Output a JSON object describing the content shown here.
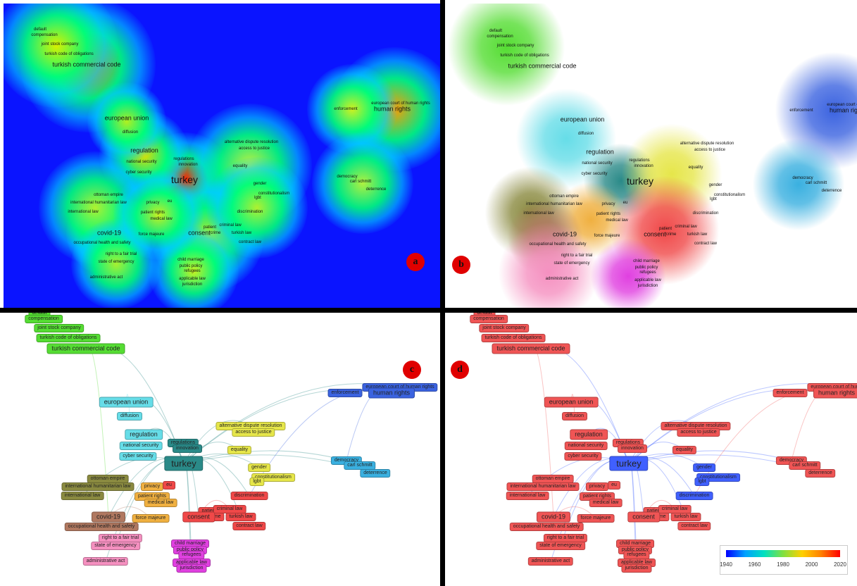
{
  "badges": {
    "a": "a",
    "b": "b",
    "c": "c",
    "d": "d"
  },
  "terms": {
    "default": "default",
    "compensation": "compensation",
    "joint_stock_company": "joint stock company",
    "turkish_code_of_obligations": "turkish code of obligations",
    "turkish_commercial_code": "turkish commercial code",
    "european_court_of_human_rights": "european court of human rights",
    "enforcement": "enforcement",
    "human_rights": "human rights",
    "european_union": "european union",
    "diffusion": "diffusion",
    "regulation": "regulation",
    "regulations": "regulations",
    "innovation": "innovation",
    "national_security": "national security",
    "cyber_security": "cyber security",
    "turkey": "turkey",
    "alternative_dispute_resolution": "alternative dispute resolution",
    "access_to_justice": "access to justice",
    "equality": "equality",
    "gender": "gender",
    "constitutionalism": "constitutionalism",
    "lgbt": "lgbt",
    "democracy": "democracy",
    "carl_schmitt": "carl schmitt",
    "deterrence": "deterrence",
    "ottoman_empire": "ottoman empire",
    "international_humanitarian_law": "international humanitarian law",
    "international_law": "international law",
    "privacy": "privacy",
    "eu": "eu",
    "patient_rights": "patient rights",
    "medical_law": "medical law",
    "discrimination": "discrimination",
    "patient": "patient",
    "crime": "crime",
    "consent": "consent",
    "criminal_law": "criminal law",
    "turkish_law": "turkish law",
    "contract_law": "contract law",
    "covid_19": "covid-19",
    "force_majeure": "force majeure",
    "occupational_health_and_safety": "occupational health and safety",
    "right_to_a_fair_trial": "right to a fair trial",
    "state_of_emergency": "state of emergency",
    "child_marriage": "child marriage",
    "public_policy": "public policy",
    "refugees": "refugees",
    "applicable_law": "applicable law",
    "jurisdiction": "jurisdiction",
    "administrative_act": "administrative act"
  },
  "colors": {
    "density_background": "#0a14ff",
    "cluster_green": "#55dd33",
    "cluster_cyan": "#66dde8",
    "cluster_teal": "#2a8a88",
    "cluster_yellow": "#e6e64a",
    "cluster_blue": "#3b63e0",
    "cluster_skyblue": "#3ab0e0",
    "cluster_olive": "#8a8a40",
    "cluster_orange": "#f0b040",
    "cluster_red": "#f04848",
    "cluster_brown": "#b07860",
    "cluster_pink": "#f590c0",
    "cluster_magenta": "#e040e0",
    "overlay_red": "#f05555",
    "overlay_blue": "#4060ff"
  },
  "legend": {
    "ticks": [
      "1940",
      "1960",
      "1980",
      "2000",
      "2020"
    ],
    "min": 1940,
    "max": 2020
  }
}
